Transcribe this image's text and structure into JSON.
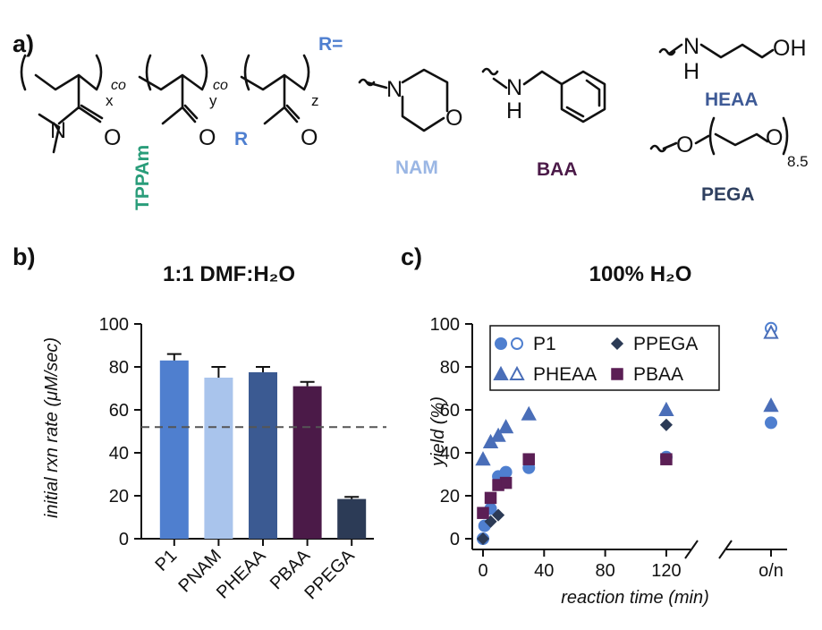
{
  "panel_a": {
    "label": "a)",
    "r_equals": "R=",
    "tppam_label": "TPPAm",
    "r_label": "R",
    "co_label": "co",
    "subscripts": {
      "x": "x",
      "y": "y",
      "z": "z",
      "n": "8.5"
    },
    "atoms": {
      "N": "N",
      "O": "O",
      "H": "H",
      "OH": "OH"
    },
    "side_chains": [
      {
        "name": "NAM",
        "color": "#9ab6e4"
      },
      {
        "name": "BAA",
        "color": "#4b1a48"
      },
      {
        "name": "HEAA",
        "color": "#3e5a96"
      },
      {
        "name": "PEGA",
        "color": "#2f4060"
      }
    ],
    "colors": {
      "tppam": "#2a9d7a",
      "r": "#4f7fd0"
    }
  },
  "panel_b": {
    "label": "b)"
  },
  "panel_c": {
    "label": "c)"
  },
  "chart_data": [
    {
      "type": "bar",
      "title": "1:1 DMF:H₂O",
      "xlabel": "",
      "ylabel": "initial rxn rate (μM/sec)",
      "ylim": [
        0,
        100
      ],
      "yticks": [
        0,
        20,
        40,
        60,
        80,
        100
      ],
      "categories": [
        "P1",
        "PNAM",
        "PHEAA",
        "PBAA",
        "PPEGA"
      ],
      "values": [
        83,
        75,
        77.5,
        71,
        18.5
      ],
      "errors": [
        3,
        5,
        2.5,
        2,
        1
      ],
      "colors": [
        "#4f7fcf",
        "#a9c4ec",
        "#3b5a92",
        "#4b1a48",
        "#2c3b56"
      ],
      "reference_line": 52,
      "grid": false
    },
    {
      "type": "scatter",
      "title": "100% H₂O",
      "xlabel": "reaction time (min)",
      "ylabel": "yield (%)",
      "ylim": [
        0,
        100
      ],
      "yticks": [
        0,
        20,
        40,
        60,
        80,
        100
      ],
      "xticks": [
        0,
        40,
        80,
        120
      ],
      "overnight_label": "o/n",
      "xlim": [
        0,
        130
      ],
      "axis_break": true,
      "legend_position": "top",
      "series": [
        {
          "name": "P1",
          "marker": "circle",
          "color": "#4f7fcf",
          "points": [
            [
              0,
              0
            ],
            [
              1,
              6
            ],
            [
              5,
              14
            ],
            [
              10,
              29
            ],
            [
              15,
              31
            ],
            [
              30,
              33
            ],
            [
              120,
              38
            ]
          ],
          "overnight": 54,
          "overnight_open": 98
        },
        {
          "name": "PHEAA",
          "marker": "triangle",
          "color": "#4a6eb8",
          "points": [
            [
              0,
              37
            ],
            [
              5,
              45
            ],
            [
              10,
              48
            ],
            [
              15,
              52
            ],
            [
              30,
              58
            ],
            [
              120,
              60
            ]
          ],
          "overnight": 62,
          "overnight_open": 96
        },
        {
          "name": "PPEGA",
          "marker": "diamond",
          "color": "#2c3b56",
          "points": [
            [
              0,
              0
            ],
            [
              5,
              8
            ],
            [
              10,
              11
            ],
            [
              120,
              53
            ]
          ]
        },
        {
          "name": "PBAA",
          "marker": "square",
          "color": "#5b1f55",
          "points": [
            [
              0,
              12
            ],
            [
              5,
              19
            ],
            [
              10,
              25
            ],
            [
              15,
              26
            ],
            [
              30,
              37
            ],
            [
              120,
              37
            ]
          ]
        }
      ]
    }
  ]
}
